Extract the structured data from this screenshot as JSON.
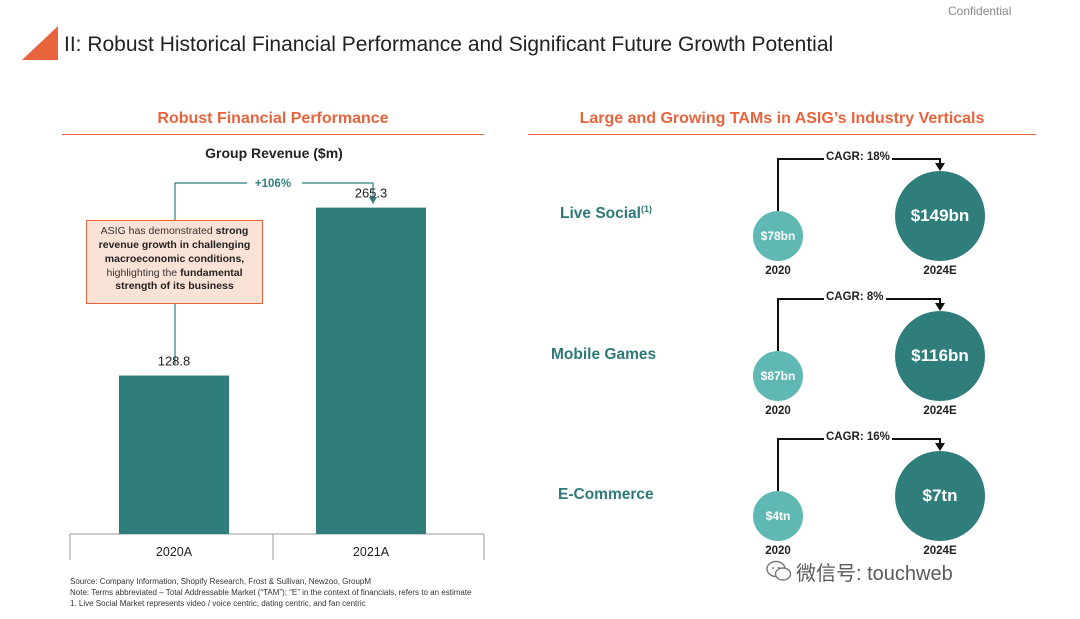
{
  "header": {
    "confidential": "Confidential",
    "title": "II: Robust Historical Financial Performance and Significant Future Growth Potential",
    "accent_color": "#e8643c"
  },
  "left_section": {
    "title": "Robust Financial Performance",
    "callout": {
      "p1": "ASIG has demonstrated ",
      "b1": "strong revenue growth in challenging macroeconomic conditions,",
      "p2": " highlighting the ",
      "b2": "fundamental strength of its business"
    }
  },
  "right_section": {
    "title": "Large and Growing TAMs in ASIG’s Industry Verticals",
    "verticals": [
      {
        "label": "Live Social",
        "sup": "(1)",
        "cagr": "CAGR: 18%",
        "v2020": "$78bn",
        "v2024": "$149bn",
        "y2020": "2020",
        "y2024": "2024E"
      },
      {
        "label": "Mobile Games",
        "sup": "",
        "cagr": "CAGR: 8%",
        "v2020": "$87bn",
        "v2024": "$116bn",
        "y2020": "2020",
        "y2024": "2024E"
      },
      {
        "label": "E-Commerce",
        "sup": "",
        "cagr": "CAGR: 16%",
        "v2020": "$4tn",
        "v2024": "$7tn",
        "y2020": "2020",
        "y2024": "2024E"
      }
    ],
    "colors": {
      "small": "#5fb8b3",
      "big": "#2f7e7c"
    }
  },
  "chart_data": [
    {
      "type": "bar",
      "title": "Group Revenue ($m)",
      "categories": [
        "2020A",
        "2021A"
      ],
      "values": [
        128.8,
        265.3
      ],
      "value_labels": [
        "128.8",
        "265.3"
      ],
      "growth_annotation": "+106%",
      "xlabel": "",
      "ylabel": "",
      "ylim": [
        0,
        300
      ],
      "bar_color": "#2f7e7c"
    },
    {
      "type": "bubble",
      "title": "Large and Growing TAMs in ASIG’s Industry Verticals",
      "categories": [
        "Live Social",
        "Mobile Games",
        "E-Commerce"
      ],
      "series": [
        {
          "name": "2020",
          "values": [
            78,
            87,
            4
          ],
          "units": [
            "bn",
            "bn",
            "tn"
          ]
        },
        {
          "name": "2024E",
          "values": [
            149,
            116,
            7
          ],
          "units": [
            "bn",
            "bn",
            "tn"
          ]
        }
      ],
      "cagr": [
        "18%",
        "8%",
        "16%"
      ]
    }
  ],
  "footnotes": {
    "source": "Source: Company Information, Shopify Research, Frost & Sullivan, Newzoo, GroupM",
    "note": "Note:     Terms abbreviated – Total Addressable Market (“TAM”); “E” in the context of financials, refers to an estimate",
    "n1": "1.          Live Social Market represents video / voice centric, dating centric, and fan centric"
  },
  "watermark": {
    "text": "微信号: touchweb"
  }
}
